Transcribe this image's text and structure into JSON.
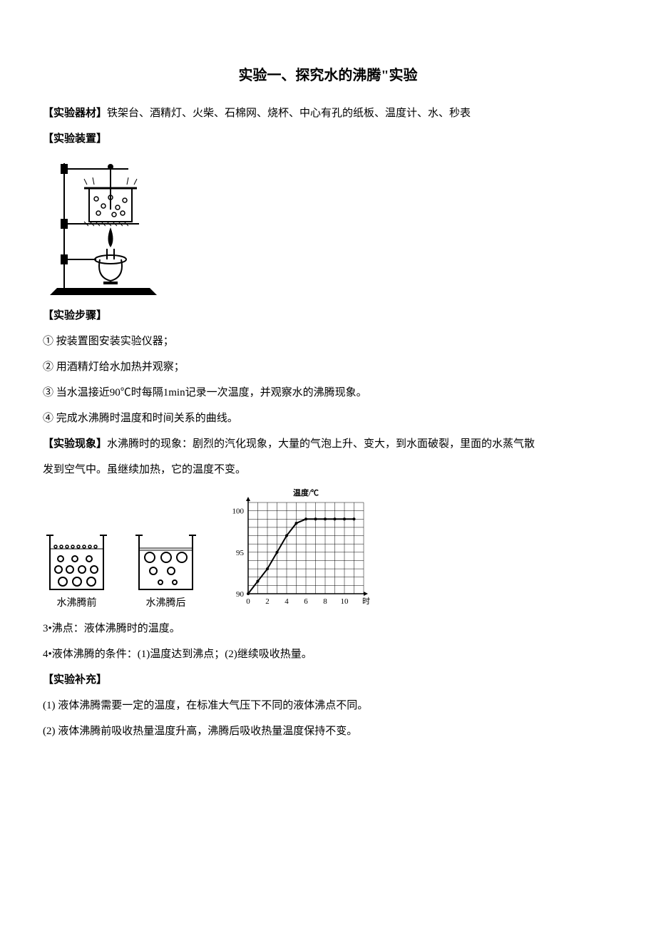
{
  "title": "实验一、探究水的沸腾\"实验",
  "equipment_label": "【实验器材】",
  "equipment_text": "铁架台、酒精灯、火柴、石棉网、烧杯、中心有孔的纸板、温度计、水、秒表",
  "apparatus_label": "【实验装置】",
  "steps_label": "【实验步骤】",
  "steps": [
    "① 按装置图安装实验仪器；",
    "② 用酒精灯给水加热并观察；",
    "③ 当水温接近90℃时每隔1min记录一次温度，并观察水的沸腾现象。",
    "④ 完成水沸腾时温度和时间关系的曲线。"
  ],
  "phenomenon_label": "【实验现象】",
  "phenomenon_line1": "水沸腾时的现象：剧烈的汽化现象，大量的气泡上升、变大，到水面破裂，里面的水蒸气散",
  "phenomenon_line2": "发到空气中。虽继续加热，它的温度不变。",
  "figure_beaker_before": "水沸腾前",
  "figure_beaker_after": "水沸腾后",
  "chart": {
    "type": "line",
    "title": "温度/℃",
    "xlabel": "时间/min",
    "xlim": [
      0,
      12
    ],
    "ylim": [
      90,
      101
    ],
    "xticks": [
      0,
      2,
      4,
      6,
      8,
      10
    ],
    "yticks_major": [
      90,
      95,
      100
    ],
    "x_minor_step": 1,
    "y_minor_step": 1,
    "points": [
      [
        0,
        90
      ],
      [
        1,
        91.5
      ],
      [
        2,
        93
      ],
      [
        3,
        95
      ],
      [
        4,
        97
      ],
      [
        5,
        98.5
      ],
      [
        6,
        99
      ],
      [
        7,
        99
      ],
      [
        8,
        99
      ],
      [
        9,
        99
      ],
      [
        10,
        99
      ],
      [
        11,
        99
      ]
    ],
    "line_color": "#000000",
    "grid_color": "#000000",
    "background_color": "#ffffff",
    "axis_fontsize": 11
  },
  "point3": "3•沸点：液体沸腾时的温度。",
  "point4": "4•液体沸腾的条件：(1)温度达到沸点；(2)继续吸收热量。",
  "supplement_label": "【实验补充】",
  "supplement": [
    "(1) 液体沸腾需要一定的温度，在标准大气压下不同的液体沸点不同。",
    "(2) 液体沸腾前吸收热量温度升高，沸腾后吸收热量温度保持不变。"
  ]
}
